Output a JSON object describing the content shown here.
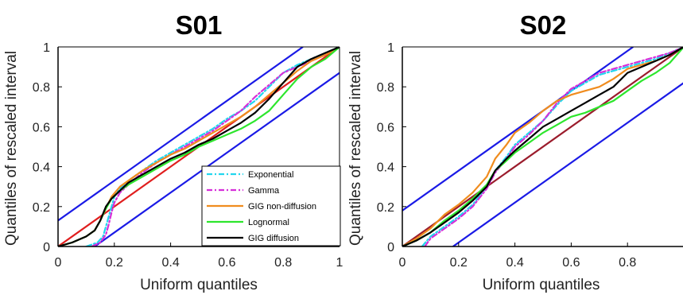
{
  "chart_data": [
    {
      "type": "line",
      "title": "S01",
      "xlabel": "Uniform quantiles",
      "ylabel": "Quantiles of rescaled interval",
      "xlim": [
        0,
        1
      ],
      "ylim": [
        0,
        1
      ],
      "xticks": [
        0,
        0.2,
        0.4,
        0.6,
        0.8,
        1
      ],
      "xtick_labels": [
        "0",
        "0.2",
        "0.4",
        "0.6",
        "0.8",
        "1"
      ],
      "yticks": [
        0,
        0.2,
        0.4,
        0.6,
        0.8,
        1
      ],
      "ytick_labels": [
        "0",
        "0.2",
        "0.4",
        "0.6",
        "0.8",
        "1"
      ],
      "grid": false,
      "legend_position": "bottom-right",
      "reference_lines": [
        {
          "role": "identity",
          "color": "#e01e1e",
          "points": [
            [
              0,
              0
            ],
            [
              1,
              1
            ]
          ]
        },
        {
          "role": "upper-bound",
          "color": "#1a1ae6",
          "points": [
            [
              0,
              0.13
            ],
            [
              0.87,
              1
            ]
          ]
        },
        {
          "role": "lower-bound",
          "color": "#1a1ae6",
          "points": [
            [
              0.13,
              0
            ],
            [
              1,
              0.87
            ]
          ]
        }
      ],
      "series": [
        {
          "name": "Exponential",
          "color": "#22d6ee",
          "dash": "7 3 2 3",
          "x": [
            0.1,
            0.14,
            0.16,
            0.17,
            0.18,
            0.19,
            0.2,
            0.22,
            0.25,
            0.3,
            0.35,
            0.4,
            0.45,
            0.5,
            0.55,
            0.6,
            0.65,
            0.7,
            0.75,
            0.8,
            0.85,
            0.9,
            0.95,
            1.0
          ],
          "y": [
            0.0,
            0.02,
            0.05,
            0.1,
            0.15,
            0.2,
            0.25,
            0.29,
            0.33,
            0.38,
            0.43,
            0.47,
            0.51,
            0.55,
            0.59,
            0.64,
            0.68,
            0.73,
            0.8,
            0.87,
            0.91,
            0.94,
            0.97,
            1.0
          ]
        },
        {
          "name": "Gamma",
          "color": "#d62fd9",
          "dash": "7 3 2 3",
          "x": [
            0.12,
            0.15,
            0.17,
            0.18,
            0.19,
            0.2,
            0.22,
            0.25,
            0.3,
            0.35,
            0.4,
            0.45,
            0.5,
            0.55,
            0.6,
            0.65,
            0.7,
            0.75,
            0.8,
            0.85,
            0.9,
            0.95,
            1.0
          ],
          "y": [
            0.0,
            0.02,
            0.06,
            0.11,
            0.17,
            0.22,
            0.27,
            0.31,
            0.37,
            0.42,
            0.46,
            0.5,
            0.54,
            0.58,
            0.63,
            0.68,
            0.75,
            0.81,
            0.87,
            0.9,
            0.93,
            0.96,
            1.0
          ]
        },
        {
          "name": "GIG non-diffusion",
          "color": "#f08c1e",
          "dash": "",
          "x": [
            0.0,
            0.05,
            0.1,
            0.13,
            0.15,
            0.17,
            0.19,
            0.22,
            0.25,
            0.3,
            0.35,
            0.4,
            0.45,
            0.5,
            0.55,
            0.6,
            0.65,
            0.7,
            0.75,
            0.8,
            0.85,
            0.9,
            0.95,
            1.0
          ],
          "y": [
            0.0,
            0.02,
            0.05,
            0.08,
            0.13,
            0.19,
            0.25,
            0.3,
            0.33,
            0.38,
            0.42,
            0.46,
            0.49,
            0.53,
            0.57,
            0.61,
            0.65,
            0.7,
            0.76,
            0.82,
            0.88,
            0.93,
            0.96,
            1.0
          ]
        },
        {
          "name": "Lognormal",
          "color": "#2de62d",
          "dash": "",
          "x": [
            0.0,
            0.05,
            0.1,
            0.13,
            0.15,
            0.17,
            0.19,
            0.22,
            0.25,
            0.3,
            0.35,
            0.4,
            0.45,
            0.5,
            0.55,
            0.6,
            0.65,
            0.7,
            0.75,
            0.8,
            0.85,
            0.9,
            0.95,
            1.0
          ],
          "y": [
            0.0,
            0.02,
            0.05,
            0.08,
            0.13,
            0.19,
            0.24,
            0.28,
            0.31,
            0.35,
            0.39,
            0.43,
            0.46,
            0.5,
            0.53,
            0.56,
            0.59,
            0.63,
            0.68,
            0.76,
            0.84,
            0.9,
            0.94,
            1.0
          ]
        },
        {
          "name": "GIG diffusion",
          "color": "#000000",
          "dash": "",
          "x": [
            0.0,
            0.05,
            0.1,
            0.13,
            0.15,
            0.17,
            0.19,
            0.22,
            0.25,
            0.3,
            0.35,
            0.4,
            0.45,
            0.5,
            0.55,
            0.6,
            0.65,
            0.7,
            0.75,
            0.8,
            0.85,
            0.9,
            0.95,
            1.0
          ],
          "y": [
            0.0,
            0.02,
            0.05,
            0.08,
            0.13,
            0.2,
            0.24,
            0.28,
            0.32,
            0.36,
            0.4,
            0.44,
            0.47,
            0.51,
            0.54,
            0.58,
            0.62,
            0.67,
            0.74,
            0.82,
            0.9,
            0.94,
            0.97,
            1.0
          ]
        }
      ]
    },
    {
      "type": "line",
      "title": "S02",
      "xlabel": "Uniform quantiles",
      "ylabel": "Quantiles of rescaled interval",
      "xlim": [
        0,
        1
      ],
      "ylim": [
        0,
        1
      ],
      "xticks": [
        0,
        0.2,
        0.4,
        0.6,
        0.8
      ],
      "xtick_labels": [
        "0",
        "0.2",
        "0.4",
        "0.6",
        "0.8"
      ],
      "yticks": [
        0,
        0.2,
        0.4,
        0.6,
        0.8,
        1
      ],
      "ytick_labels": [
        "0",
        "0.2",
        "0.4",
        "0.6",
        "0.8",
        "1"
      ],
      "grid": false,
      "legend_position": "",
      "reference_lines": [
        {
          "role": "identity",
          "color": "#9b1c2c",
          "points": [
            [
              0,
              0
            ],
            [
              1,
              1
            ]
          ]
        },
        {
          "role": "upper-bound",
          "color": "#1a1ae6",
          "points": [
            [
              0,
              0.18
            ],
            [
              0.82,
              1
            ]
          ]
        },
        {
          "role": "lower-bound",
          "color": "#1a1ae6",
          "points": [
            [
              0.18,
              0
            ],
            [
              1,
              0.82
            ]
          ]
        }
      ],
      "series": [
        {
          "name": "Exponential",
          "color": "#22d6ee",
          "dash": "7 3 2 3",
          "x": [
            0.07,
            0.1,
            0.15,
            0.2,
            0.25,
            0.3,
            0.33,
            0.37,
            0.4,
            0.45,
            0.5,
            0.55,
            0.6,
            0.65,
            0.7,
            0.75,
            0.8,
            0.85,
            0.9,
            0.95,
            1.0
          ],
          "y": [
            0.0,
            0.05,
            0.1,
            0.15,
            0.21,
            0.3,
            0.38,
            0.45,
            0.51,
            0.57,
            0.63,
            0.71,
            0.78,
            0.82,
            0.86,
            0.88,
            0.9,
            0.92,
            0.94,
            0.97,
            1.0
          ]
        },
        {
          "name": "Gamma",
          "color": "#d62fd9",
          "dash": "7 3 2 3",
          "x": [
            0.08,
            0.1,
            0.15,
            0.2,
            0.25,
            0.3,
            0.33,
            0.37,
            0.4,
            0.45,
            0.5,
            0.55,
            0.6,
            0.65,
            0.7,
            0.75,
            0.8,
            0.85,
            0.9,
            0.95,
            1.0
          ],
          "y": [
            0.0,
            0.04,
            0.09,
            0.14,
            0.2,
            0.29,
            0.37,
            0.44,
            0.5,
            0.56,
            0.63,
            0.72,
            0.79,
            0.83,
            0.87,
            0.89,
            0.91,
            0.93,
            0.95,
            0.97,
            1.0
          ]
        },
        {
          "name": "GIG non-diffusion",
          "color": "#f08c1e",
          "dash": "",
          "x": [
            0.0,
            0.05,
            0.1,
            0.15,
            0.2,
            0.25,
            0.3,
            0.33,
            0.37,
            0.4,
            0.45,
            0.5,
            0.55,
            0.6,
            0.65,
            0.7,
            0.75,
            0.8,
            0.85,
            0.9,
            0.95,
            1.0
          ],
          "y": [
            0.0,
            0.04,
            0.09,
            0.16,
            0.21,
            0.27,
            0.35,
            0.44,
            0.51,
            0.57,
            0.62,
            0.68,
            0.73,
            0.76,
            0.78,
            0.8,
            0.84,
            0.89,
            0.91,
            0.93,
            0.96,
            1.0
          ]
        },
        {
          "name": "Lognormal",
          "color": "#2de62d",
          "dash": "",
          "x": [
            0.0,
            0.05,
            0.1,
            0.15,
            0.2,
            0.25,
            0.3,
            0.33,
            0.37,
            0.4,
            0.45,
            0.5,
            0.55,
            0.6,
            0.65,
            0.7,
            0.75,
            0.8,
            0.85,
            0.9,
            0.95,
            1.0
          ],
          "y": [
            0.0,
            0.03,
            0.07,
            0.13,
            0.18,
            0.24,
            0.31,
            0.38,
            0.43,
            0.47,
            0.52,
            0.57,
            0.61,
            0.65,
            0.67,
            0.7,
            0.73,
            0.78,
            0.83,
            0.87,
            0.92,
            1.0
          ]
        },
        {
          "name": "GIG diffusion",
          "color": "#000000",
          "dash": "",
          "x": [
            0.0,
            0.05,
            0.1,
            0.15,
            0.2,
            0.25,
            0.3,
            0.33,
            0.37,
            0.4,
            0.45,
            0.5,
            0.55,
            0.6,
            0.65,
            0.7,
            0.75,
            0.8,
            0.85,
            0.9,
            0.95,
            1.0
          ],
          "y": [
            0.0,
            0.03,
            0.07,
            0.12,
            0.17,
            0.23,
            0.3,
            0.38,
            0.44,
            0.48,
            0.54,
            0.6,
            0.64,
            0.68,
            0.72,
            0.76,
            0.8,
            0.87,
            0.9,
            0.93,
            0.96,
            1.0
          ]
        }
      ]
    }
  ]
}
